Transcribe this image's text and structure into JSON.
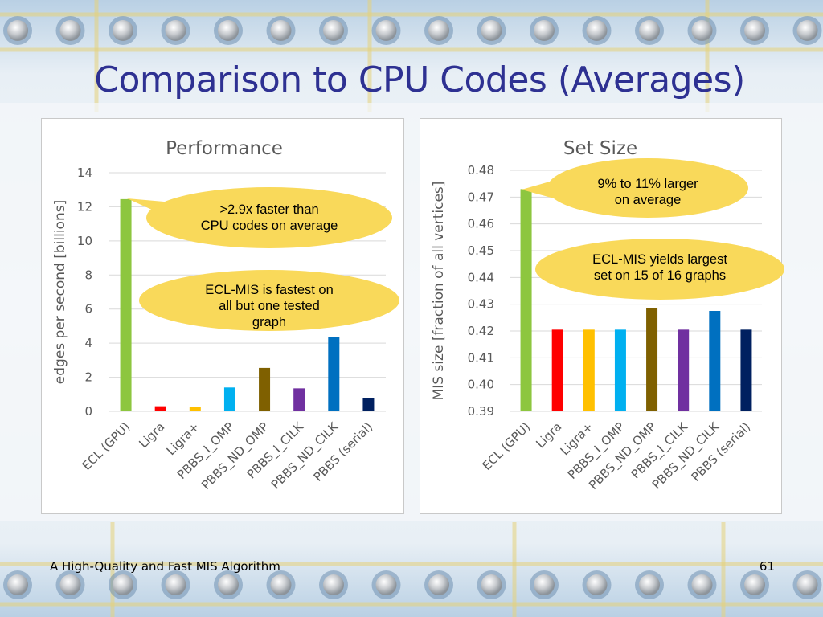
{
  "slide": {
    "title": "Comparison to CPU Codes (Averages)",
    "footer": "A High-Quality and Fast MIS Algorithm",
    "page_number": "61"
  },
  "colors": {
    "title": "#2e3192",
    "callout_fill": "#f9d95a",
    "bars": [
      "#8dc63f",
      "#ff0000",
      "#ffc000",
      "#00b0f0",
      "#7f6000",
      "#7030a0",
      "#0070c0",
      "#002060"
    ]
  },
  "chart_data": [
    {
      "type": "bar",
      "title": "Performance",
      "ylabel": "edges per second [billions]",
      "xlabel": "",
      "ylim": [
        0,
        14
      ],
      "yticks": [
        "0",
        "2",
        "4",
        "6",
        "8",
        "10",
        "12",
        "14"
      ],
      "grid": true,
      "categories": [
        "ECL (GPU)",
        "Ligra",
        "Ligra+",
        "PBBS_I_OMP",
        "PBBS_ND_OMP",
        "PBBS_I_CILK",
        "PBBS_ND_CILK",
        "PBBS (serial)"
      ],
      "values": [
        12.45,
        0.3,
        0.25,
        1.4,
        2.55,
        1.35,
        4.35,
        0.8
      ],
      "callouts": [
        ">2.9x faster than CPU codes on average",
        "ECL-MIS is fastest on all but one tested graph"
      ]
    },
    {
      "type": "bar",
      "title": "Set Size",
      "ylabel": "MIS size [fraction of all vertices]",
      "xlabel": "",
      "ylim": [
        0.39,
        0.48
      ],
      "yticks": [
        "0.39",
        "0.40",
        "0.41",
        "0.42",
        "0.43",
        "0.44",
        "0.45",
        "0.46",
        "0.47",
        "0.48"
      ],
      "grid": true,
      "categories": [
        "ECL (GPU)",
        "Ligra",
        "Ligra+",
        "PBBS_I_OMP",
        "PBBS_ND_OMP",
        "PBBS_I_CILK",
        "PBBS_ND_CILK",
        "PBBS (serial)"
      ],
      "values": [
        0.473,
        0.4205,
        0.4205,
        0.4205,
        0.4285,
        0.4205,
        0.4275,
        0.4205
      ],
      "callouts": [
        "9% to 11% larger on average",
        "ECL-MIS yields largest set on 15 of 16 graphs"
      ]
    }
  ]
}
